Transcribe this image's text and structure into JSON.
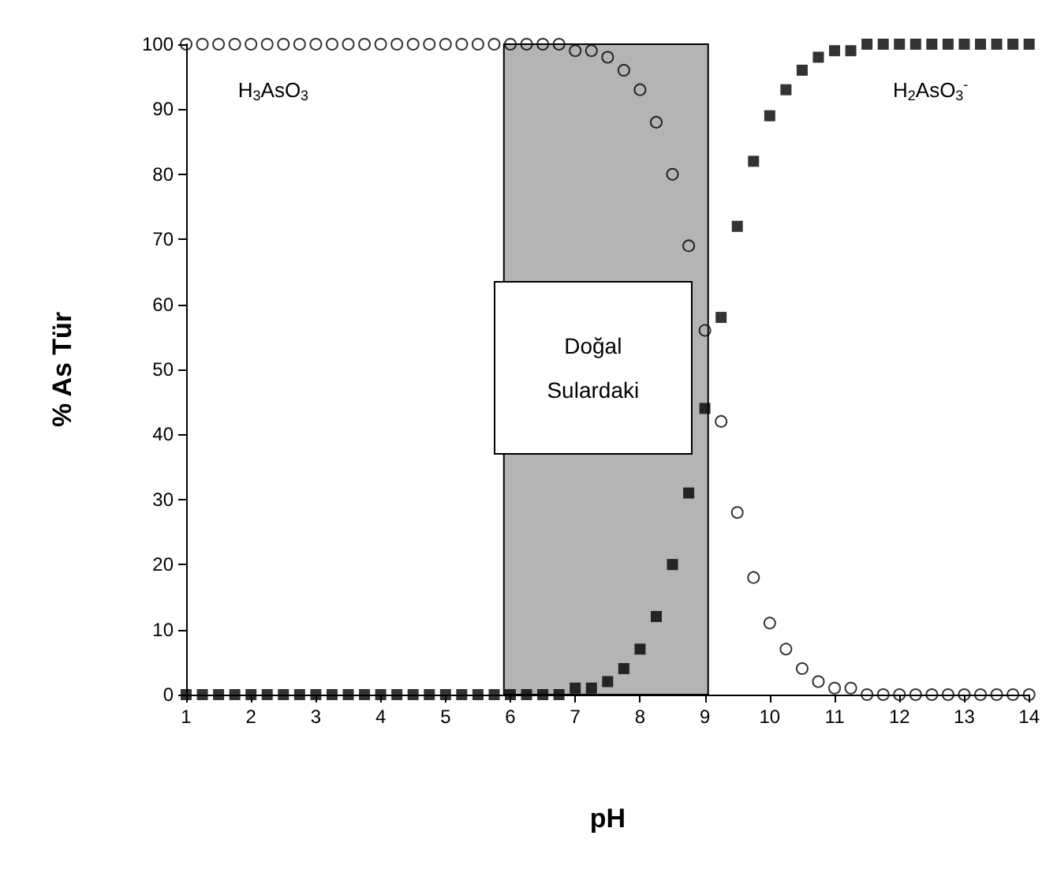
{
  "chart_data": {
    "type": "scatter",
    "xlabel": "pH",
    "ylabel": "% As Tür",
    "x": [
      1,
      1.25,
      1.5,
      1.75,
      2,
      2.25,
      2.5,
      2.75,
      3,
      3.25,
      3.5,
      3.75,
      4,
      4.25,
      4.5,
      4.75,
      5,
      5.25,
      5.5,
      5.75,
      6,
      6.25,
      6.5,
      6.75,
      7,
      7.25,
      7.5,
      7.75,
      8,
      8.25,
      8.5,
      8.75,
      9,
      9.25,
      9.5,
      9.75,
      10,
      10.25,
      10.5,
      10.75,
      11,
      11.25,
      11.5,
      11.75,
      12,
      12.25,
      12.5,
      12.75,
      13,
      13.25,
      13.5,
      13.75,
      14
    ],
    "series": [
      {
        "name": "H$_{3}$AsO$_{3}$",
        "color": "#000000",
        "marker": "circle",
        "values": [
          100,
          100,
          100,
          100,
          100,
          100,
          100,
          100,
          100,
          100,
          100,
          100,
          100,
          100,
          100,
          100,
          100,
          100,
          100,
          100,
          100,
          100,
          100,
          100,
          99,
          99,
          98,
          96,
          93,
          88,
          80,
          69,
          56,
          42,
          28,
          18,
          11,
          7,
          4,
          2,
          1,
          1,
          0,
          0,
          0,
          0,
          0,
          0,
          0,
          0,
          0,
          0,
          0
        ]
      },
      {
        "name": "H$_{2}$AsO$_{3}$$^{-}$",
        "color": "#000000",
        "marker": "square",
        "values": [
          0,
          0,
          0,
          0,
          0,
          0,
          0,
          0,
          0,
          0,
          0,
          0,
          0,
          0,
          0,
          0,
          0,
          0,
          0,
          0,
          0,
          0,
          0,
          0,
          1,
          1,
          2,
          4,
          7,
          12,
          20,
          31,
          44,
          58,
          72,
          82,
          89,
          93,
          96,
          98,
          99,
          99,
          100,
          100,
          100,
          100,
          100,
          100,
          100,
          100,
          100,
          100,
          100
        ]
      }
    ],
    "xlim": [
      1,
      14
    ],
    "xticks": [
      1,
      2,
      3,
      4,
      5,
      6,
      7,
      8,
      9,
      10,
      11,
      12,
      13,
      14
    ],
    "ylim": [
      0,
      100
    ],
    "yticks": [
      0,
      10,
      20,
      30,
      40,
      50,
      60,
      70,
      80,
      90,
      100
    ],
    "bands": [
      {
        "axis": "x",
        "from": 5.9,
        "to": 9.05,
        "color": "#b4b4b4"
      }
    ],
    "annotations": [
      {
        "text": "Doğal Sulardaki"
      }
    ],
    "grid": false,
    "legend": false
  }
}
